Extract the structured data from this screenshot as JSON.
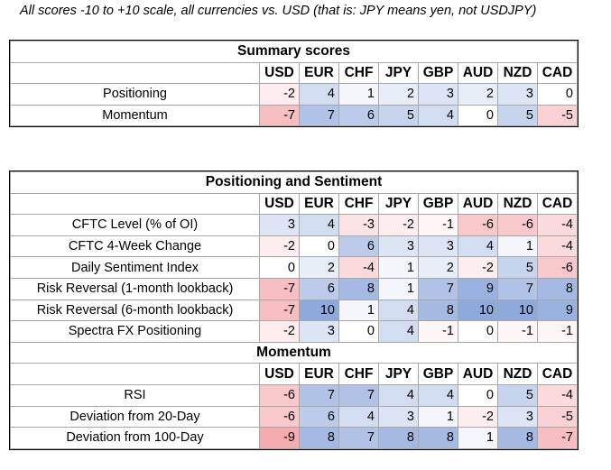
{
  "note": "All scores -10 to +10 scale, all currencies vs. USD (that is: JPY means yen, not USDJPY)",
  "currencies": [
    "USD",
    "EUR",
    "CHF",
    "JPY",
    "GBP",
    "AUD",
    "NZD",
    "CAD"
  ],
  "summary": {
    "title": "Summary scores",
    "rows": [
      {
        "label": "Positioning",
        "values": [
          -2,
          4,
          1,
          2,
          3,
          2,
          3,
          0
        ]
      },
      {
        "label": "Momentum",
        "values": [
          -7,
          7,
          6,
          5,
          4,
          0,
          5,
          -5
        ]
      }
    ]
  },
  "positioning": {
    "title": "Positioning and Sentiment",
    "rows": [
      {
        "label": "CFTC Level (% of OI)",
        "values": [
          3,
          4,
          -3,
          -2,
          -1,
          -6,
          -6,
          -4
        ]
      },
      {
        "label": "CFTC 4-Week Change",
        "values": [
          -2,
          0,
          6,
          3,
          3,
          4,
          1,
          -4
        ]
      },
      {
        "label": "Daily Sentiment Index",
        "values": [
          0,
          2,
          -4,
          1,
          2,
          -2,
          5,
          -6
        ]
      },
      {
        "label": "Risk Reversal (1-month lookback)",
        "values": [
          -7,
          6,
          8,
          1,
          7,
          9,
          7,
          8
        ]
      },
      {
        "label": "Risk Reversal (6-month lookback)",
        "values": [
          -7,
          10,
          1,
          4,
          8,
          10,
          10,
          9
        ]
      },
      {
        "label": "Spectra FX Positioning",
        "values": [
          -2,
          3,
          0,
          4,
          -1,
          0,
          -1,
          -1
        ]
      }
    ]
  },
  "momentum": {
    "title": "Momentum",
    "rows": [
      {
        "label": "RSI",
        "values": [
          -6,
          7,
          7,
          4,
          4,
          0,
          5,
          -4
        ]
      },
      {
        "label": "Deviation from 20-Day",
        "values": [
          -6,
          6,
          4,
          3,
          1,
          -2,
          3,
          -5
        ]
      },
      {
        "label": "Deviation from 100-Day",
        "values": [
          -9,
          8,
          7,
          8,
          8,
          1,
          8,
          -7
        ]
      }
    ]
  },
  "colors": {
    "positive": "#8ea9db",
    "negative": "#f4a3a8",
    "neutral": "#ffffff"
  }
}
